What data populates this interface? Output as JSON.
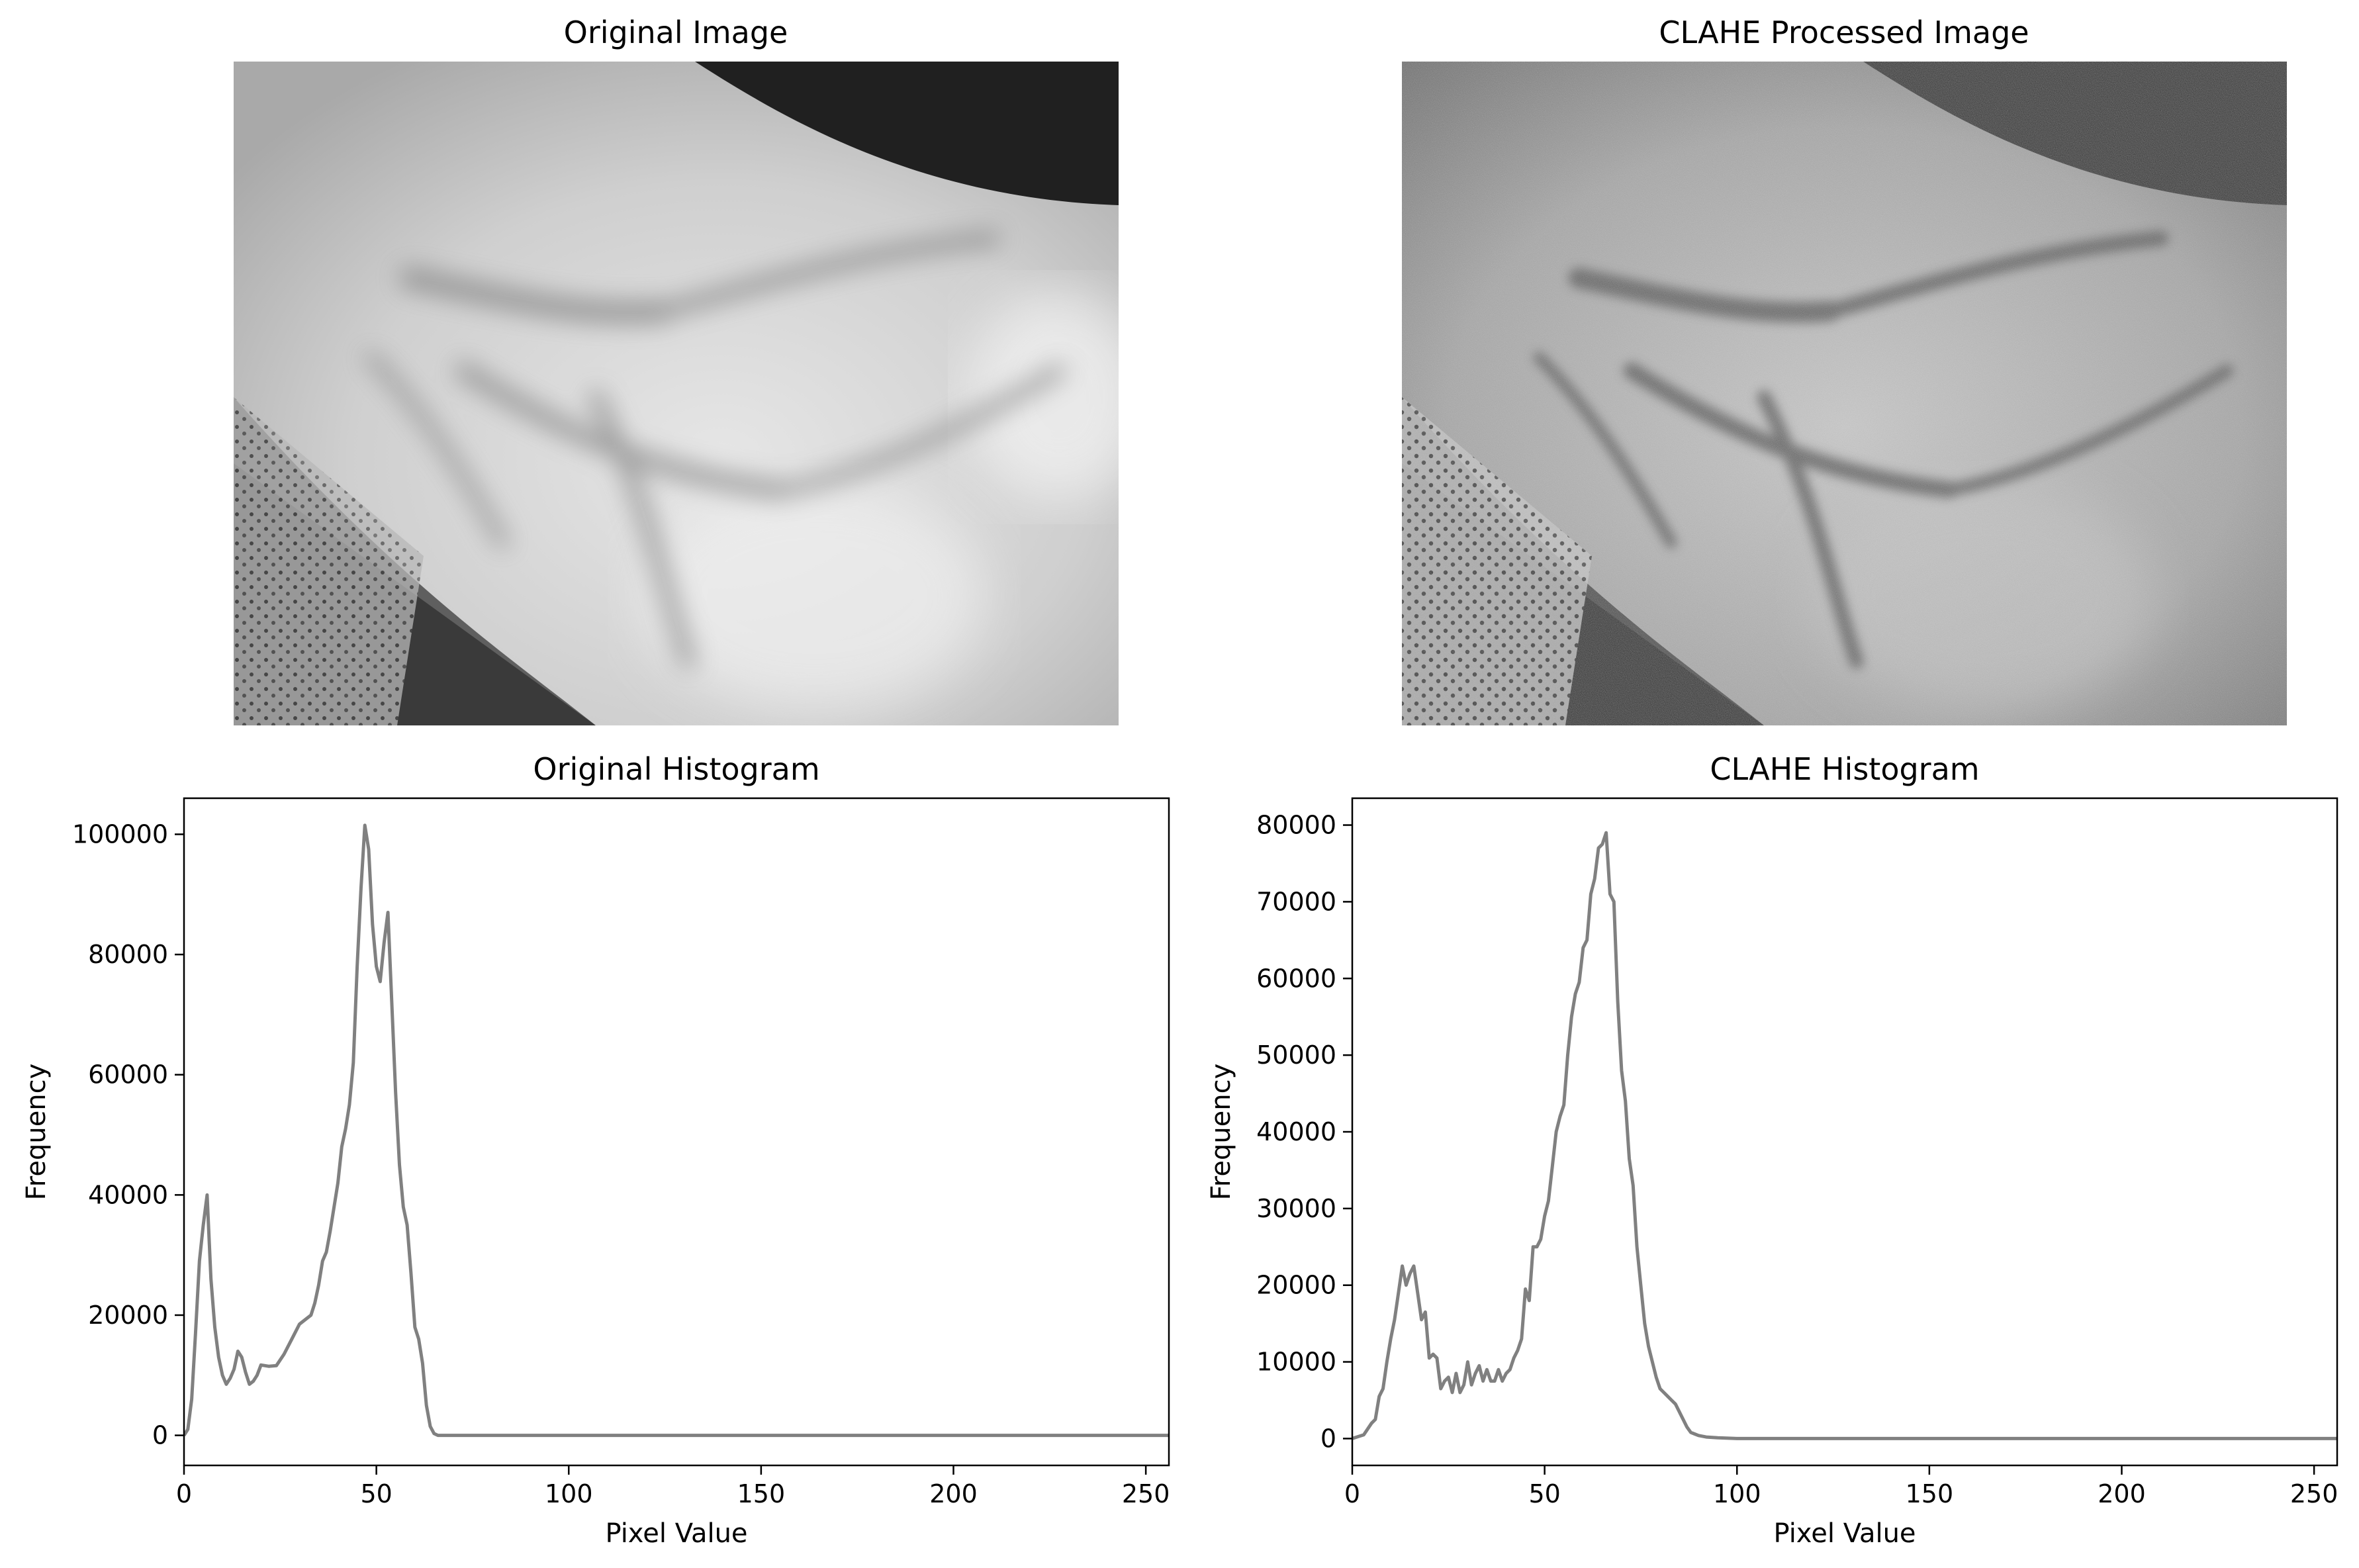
{
  "figure": {
    "titles": {
      "original_image": "Original Image",
      "clahe_image": "CLAHE Processed Image",
      "original_hist": "Original Histogram",
      "clahe_hist": "CLAHE Histogram"
    }
  },
  "chart_data": [
    {
      "type": "line",
      "title": "Original Histogram",
      "xlabel": "Pixel Value",
      "ylabel": "Frequency",
      "xlim": [
        0,
        256
      ],
      "ylim": [
        -5000,
        106000
      ],
      "xticks": [
        0,
        50,
        100,
        150,
        200,
        250
      ],
      "yticks": [
        0,
        20000,
        40000,
        60000,
        80000,
        100000
      ],
      "grid": false,
      "color": "#808080",
      "series": [
        {
          "x": [
            0,
            1,
            2,
            3,
            4,
            5,
            6,
            7,
            8,
            9,
            10,
            11,
            12,
            13,
            14,
            15,
            16,
            17,
            18,
            19,
            20,
            22,
            24,
            26,
            28,
            30,
            32,
            33,
            34,
            35,
            36,
            37,
            38,
            39,
            40,
            41,
            42,
            43,
            44,
            45,
            46,
            47,
            48,
            49,
            50,
            51,
            52,
            53,
            54,
            55,
            56,
            57,
            58,
            59,
            60,
            61,
            62,
            63,
            64,
            65,
            66,
            68,
            70,
            80,
            100,
            150,
            200,
            256
          ],
          "y": [
            0,
            1000,
            6000,
            17000,
            29000,
            35000,
            40000,
            26000,
            18000,
            13000,
            10000,
            8500,
            9500,
            11000,
            14000,
            13000,
            10500,
            8500,
            9000,
            10000,
            11700,
            11500,
            11600,
            13500,
            16000,
            18500,
            19500,
            20000,
            22000,
            25000,
            29000,
            30500,
            34000,
            38000,
            42000,
            48000,
            51000,
            55000,
            62000,
            78000,
            91000,
            101500,
            97500,
            85000,
            78000,
            75500,
            82000,
            87000,
            72000,
            57000,
            45000,
            38000,
            35000,
            27000,
            18000,
            16000,
            12000,
            5000,
            1500,
            300,
            0,
            0,
            0,
            0,
            0,
            0,
            0,
            0
          ]
        }
      ]
    },
    {
      "type": "line",
      "title": "CLAHE Histogram",
      "xlabel": "Pixel Value",
      "ylabel": "Frequency",
      "xlim": [
        0,
        256
      ],
      "ylim": [
        -3500,
        83500
      ],
      "xticks": [
        0,
        50,
        100,
        150,
        200,
        250
      ],
      "yticks": [
        0,
        10000,
        20000,
        30000,
        40000,
        50000,
        60000,
        70000,
        80000
      ],
      "grid": false,
      "color": "#808080",
      "series": [
        {
          "x": [
            0,
            3,
            5,
            6,
            7,
            8,
            9,
            10,
            11,
            12,
            13,
            14,
            15,
            16,
            17,
            18,
            19,
            20,
            21,
            22,
            23,
            24,
            25,
            26,
            27,
            28,
            29,
            30,
            31,
            32,
            33,
            34,
            35,
            36,
            37,
            38,
            39,
            40,
            41,
            42,
            43,
            44,
            45,
            46,
            47,
            48,
            49,
            50,
            51,
            52,
            53,
            54,
            55,
            56,
            57,
            58,
            59,
            60,
            61,
            62,
            63,
            64,
            65,
            66,
            67,
            68,
            69,
            70,
            71,
            72,
            73,
            74,
            75,
            76,
            77,
            78,
            79,
            80,
            81,
            82,
            83,
            84,
            85,
            86,
            87,
            88,
            89,
            90,
            92,
            95,
            100,
            110,
            150,
            200,
            256
          ],
          "y": [
            0,
            500,
            2000,
            2500,
            5500,
            6500,
            10000,
            13000,
            15500,
            19000,
            22500,
            20000,
            21500,
            22500,
            19000,
            15500,
            16500,
            10500,
            11000,
            10500,
            6500,
            7500,
            8000,
            6000,
            8500,
            6000,
            7000,
            10000,
            7000,
            8500,
            9500,
            7500,
            9000,
            7500,
            7500,
            9000,
            7500,
            8500,
            9000,
            10500,
            11500,
            13000,
            19500,
            18000,
            25000,
            25000,
            26000,
            29000,
            31000,
            35500,
            40000,
            42000,
            43500,
            50000,
            55000,
            58000,
            59500,
            64000,
            65000,
            71000,
            73000,
            77000,
            77500,
            79000,
            71000,
            70000,
            57000,
            48000,
            44000,
            36500,
            33000,
            25000,
            20000,
            15000,
            12000,
            10000,
            8000,
            6500,
            6000,
            5500,
            5000,
            4500,
            3500,
            2500,
            1500,
            800,
            600,
            400,
            200,
            100,
            0,
            0,
            0,
            0,
            0
          ]
        }
      ]
    }
  ]
}
